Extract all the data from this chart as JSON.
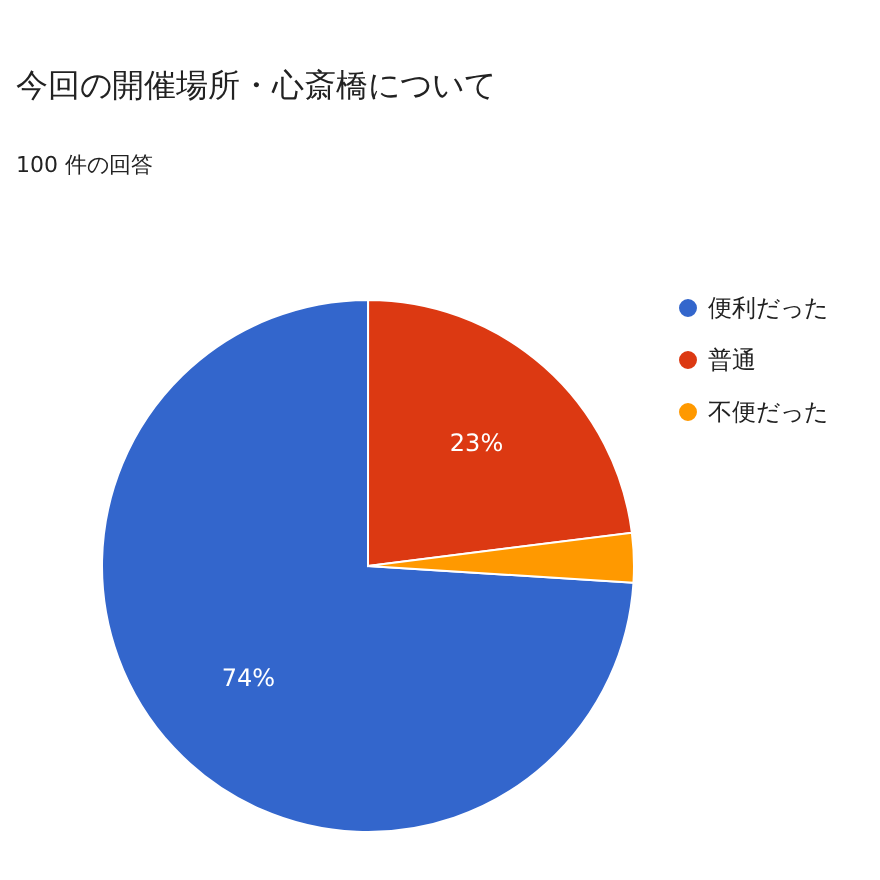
{
  "chart_data": {
    "type": "pie",
    "title": "今回の開催場所・心斎橋について",
    "subtitle": "100 件の回答",
    "categories": [
      "便利だった",
      "普通",
      "不便だった"
    ],
    "values": [
      74,
      23,
      3
    ],
    "colors": [
      "#3366cc",
      "#dc3912",
      "#ff9900"
    ],
    "value_labels": [
      "74%",
      "23%",
      null
    ],
    "legend": "right"
  }
}
